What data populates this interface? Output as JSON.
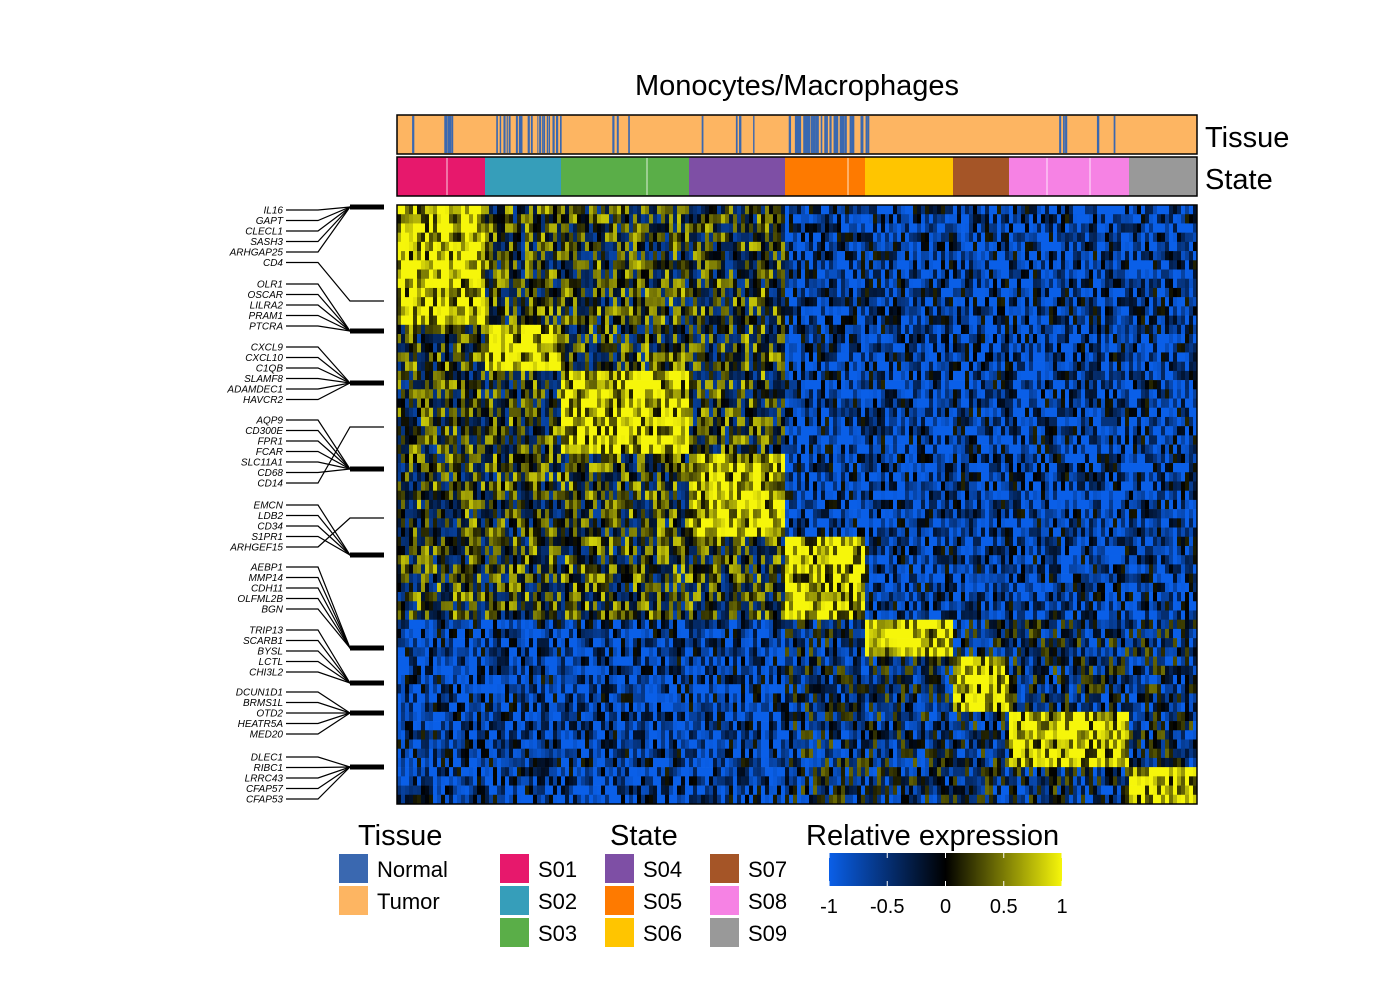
{
  "chart_data": {
    "type": "heatmap",
    "title": "Monocytes/Macrophages",
    "row_annotation_labels": {
      "tissue": "Tissue",
      "state": "State"
    },
    "states": [
      {
        "name": "S01",
        "color": "#E7186C",
        "weight": 11
      },
      {
        "name": "S02",
        "color": "#369EBA",
        "weight": 9.5
      },
      {
        "name": "S03",
        "color": "#5AAE48",
        "weight": 16
      },
      {
        "name": "S04",
        "color": "#7E4FA5",
        "weight": 12
      },
      {
        "name": "S05",
        "color": "#FE7A00",
        "weight": 10
      },
      {
        "name": "S06",
        "color": "#FFC500",
        "weight": 11
      },
      {
        "name": "S07",
        "color": "#A55527",
        "weight": 7
      },
      {
        "name": "S08",
        "color": "#F682E4",
        "weight": 15
      },
      {
        "name": "S09",
        "color": "#999999",
        "weight": 8.5
      }
    ],
    "tissues": [
      {
        "name": "Normal",
        "color": "#3A68B0"
      },
      {
        "name": "Tumor",
        "color": "#FDB562"
      }
    ],
    "gene_groups": [
      {
        "genes": [
          "IL16",
          "GAPT",
          "CLECL1",
          "SASH3",
          "ARHGAP25",
          "CD4"
        ]
      },
      {
        "genes": [
          "OLR1",
          "OSCAR",
          "LILRA2",
          "PRAM1",
          "PTCRA"
        ]
      },
      {
        "genes": [
          "CXCL9",
          "CXCL10",
          "C1QB",
          "SLAMF8",
          "ADAMDEC1",
          "HAVCR2"
        ]
      },
      {
        "genes": [
          "AQP9",
          "CD300E",
          "FPR1",
          "FCAR",
          "SLC11A1",
          "CD68",
          "CD14"
        ]
      },
      {
        "genes": [
          "EMCN",
          "LDB2",
          "CD34",
          "S1PR1",
          "ARHGEF15"
        ]
      },
      {
        "genes": [
          "AEBP1",
          "MMP14",
          "CDH11",
          "OLFML2B",
          "BGN"
        ]
      },
      {
        "genes": [
          "TRIP13",
          "SCARB1",
          "BYSL",
          "LCTL",
          "CHI3L2"
        ]
      },
      {
        "genes": [
          "DCUN1D1",
          "BRMS1L",
          "OTD2",
          "HEATR5A",
          "MED20"
        ]
      },
      {
        "genes": [
          "DLEC1",
          "RIBC1",
          "LRRC43",
          "CFAP57",
          "CFAP53"
        ]
      }
    ],
    "row_blocks": [
      {
        "rows": 13,
        "high_state": "S01"
      },
      {
        "rows": 5,
        "high_state": "S02"
      },
      {
        "rows": 9,
        "high_state": "S03"
      },
      {
        "rows": 9,
        "high_state": "S04"
      },
      {
        "rows": 9,
        "high_state": "S05"
      },
      {
        "rows": 4,
        "high_state": "S06"
      },
      {
        "rows": 6,
        "high_state": "S07"
      },
      {
        "rows": 6,
        "high_state": "S08"
      },
      {
        "rows": 4,
        "high_state": "S09"
      }
    ],
    "legend": {
      "tissue_title": "Tissue",
      "state_title": "State",
      "expression_title": "Relative expression"
    },
    "color_scale": {
      "title": "Relative expression",
      "range": [
        -1,
        1
      ],
      "ticks": [
        "-1",
        "-0.5",
        "0",
        "0.5",
        "1"
      ],
      "colors": [
        "#0A5FE8",
        "#000000",
        "#F6F60A"
      ]
    }
  }
}
